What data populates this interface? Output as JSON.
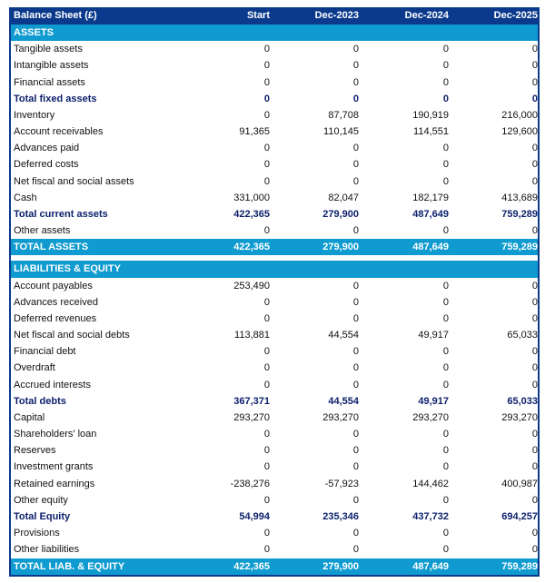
{
  "header": {
    "title": "Balance Sheet (£)",
    "columns": [
      "Start",
      "Dec-2023",
      "Dec-2024",
      "Dec-2025"
    ]
  },
  "colors": {
    "header_bg": "#0b3a8c",
    "section_bg": "#0f9bcf",
    "total_text": "#0b1f6b"
  },
  "groups": [
    {
      "section": "ASSETS",
      "rows": [
        {
          "label": "Tangible assets",
          "type": "item",
          "values": [
            "0",
            "0",
            "0",
            "0"
          ]
        },
        {
          "label": "Intangible assets",
          "type": "item",
          "values": [
            "0",
            "0",
            "0",
            "0"
          ]
        },
        {
          "label": "Financial assets",
          "type": "item",
          "values": [
            "0",
            "0",
            "0",
            "0"
          ]
        },
        {
          "label": "Total fixed assets",
          "type": "total",
          "values": [
            "0",
            "0",
            "0",
            "0"
          ]
        },
        {
          "label": "Inventory",
          "type": "item",
          "values": [
            "0",
            "87,708",
            "190,919",
            "216,000"
          ]
        },
        {
          "label": "Account receivables",
          "type": "item",
          "values": [
            "91,365",
            "110,145",
            "114,551",
            "129,600"
          ]
        },
        {
          "label": "Advances paid",
          "type": "item",
          "values": [
            "0",
            "0",
            "0",
            "0"
          ]
        },
        {
          "label": "Deferred costs",
          "type": "item",
          "values": [
            "0",
            "0",
            "0",
            "0"
          ]
        },
        {
          "label": "Net fiscal and social assets",
          "type": "item",
          "values": [
            "0",
            "0",
            "0",
            "0"
          ]
        },
        {
          "label": "Cash",
          "type": "item",
          "values": [
            "331,000",
            "82,047",
            "182,179",
            "413,689"
          ]
        },
        {
          "label": "Total current assets",
          "type": "total",
          "values": [
            "422,365",
            "279,900",
            "487,649",
            "759,289"
          ]
        },
        {
          "label": "Other assets",
          "type": "item",
          "values": [
            "0",
            "0",
            "0",
            "0"
          ]
        },
        {
          "label": "TOTAL ASSETS",
          "type": "grand",
          "values": [
            "422,365",
            "279,900",
            "487,649",
            "759,289"
          ]
        }
      ]
    },
    {
      "section": "LIABILITIES & EQUITY",
      "rows": [
        {
          "label": "Account payables",
          "type": "item",
          "values": [
            "253,490",
            "0",
            "0",
            "0"
          ]
        },
        {
          "label": "Advances received",
          "type": "item",
          "values": [
            "0",
            "0",
            "0",
            "0"
          ]
        },
        {
          "label": "Deferred revenues",
          "type": "item",
          "values": [
            "0",
            "0",
            "0",
            "0"
          ]
        },
        {
          "label": "Net fiscal and social debts",
          "type": "item",
          "values": [
            "113,881",
            "44,554",
            "49,917",
            "65,033"
          ]
        },
        {
          "label": "Financial debt",
          "type": "item",
          "values": [
            "0",
            "0",
            "0",
            "0"
          ]
        },
        {
          "label": "Overdraft",
          "type": "item",
          "values": [
            "0",
            "0",
            "0",
            "0"
          ]
        },
        {
          "label": "Accrued interests",
          "type": "item",
          "values": [
            "0",
            "0",
            "0",
            "0"
          ]
        },
        {
          "label": "Total debts",
          "type": "total",
          "values": [
            "367,371",
            "44,554",
            "49,917",
            "65,033"
          ]
        },
        {
          "label": "Capital",
          "type": "item",
          "values": [
            "293,270",
            "293,270",
            "293,270",
            "293,270"
          ]
        },
        {
          "label": "Shareholders' loan",
          "type": "item",
          "values": [
            "0",
            "0",
            "0",
            "0"
          ]
        },
        {
          "label": "Reserves",
          "type": "item",
          "values": [
            "0",
            "0",
            "0",
            "0"
          ]
        },
        {
          "label": "Investment grants",
          "type": "item",
          "values": [
            "0",
            "0",
            "0",
            "0"
          ]
        },
        {
          "label": "Retained earnings",
          "type": "item",
          "values": [
            "-238,276",
            "-57,923",
            "144,462",
            "400,987"
          ]
        },
        {
          "label": "Other equity",
          "type": "item",
          "values": [
            "0",
            "0",
            "0",
            "0"
          ]
        },
        {
          "label": "Total Equity",
          "type": "total",
          "values": [
            "54,994",
            "235,346",
            "437,732",
            "694,257"
          ]
        },
        {
          "label": "Provisions",
          "type": "item",
          "values": [
            "0",
            "0",
            "0",
            "0"
          ]
        },
        {
          "label": "Other liabilities",
          "type": "item",
          "values": [
            "0",
            "0",
            "0",
            "0"
          ]
        },
        {
          "label": "TOTAL LIAB. & EQUITY",
          "type": "grand",
          "values": [
            "422,365",
            "279,900",
            "487,649",
            "759,289"
          ]
        }
      ]
    }
  ]
}
